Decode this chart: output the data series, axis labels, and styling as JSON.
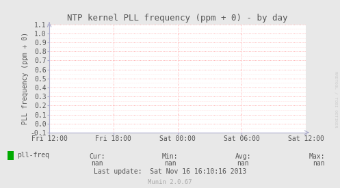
{
  "title": "NTP kernel PLL frequency (ppm + 0) - by day",
  "ylabel": "PLL frequency (ppm + 0)",
  "bg_color": "#e8e8e8",
  "plot_bg_color": "#ffffff",
  "grid_major_color": "#ff9999",
  "grid_minor_color": "#ffcccc",
  "axis_color": "#aaaacc",
  "text_color": "#555555",
  "ylim": [
    -0.1,
    1.1
  ],
  "yticks": [
    -0.1,
    0.0,
    0.1,
    0.2,
    0.3,
    0.4,
    0.5,
    0.6,
    0.7,
    0.8,
    0.9,
    1.0,
    1.1
  ],
  "xtick_labels": [
    "Fri 12:00",
    "Fri 18:00",
    "Sat 00:00",
    "Sat 06:00",
    "Sat 12:00"
  ],
  "xtick_positions": [
    0.0,
    0.25,
    0.5,
    0.75,
    1.0
  ],
  "legend_label": "pll-freq",
  "legend_color": "#00aa00",
  "cur_val": "nan",
  "min_val": "nan",
  "avg_val": "nan",
  "max_val": "nan",
  "last_update": "Last update:  Sat Nov 16 16:10:16 2013",
  "munin_version": "Munin 2.0.67",
  "watermark": "RRDTOOL / TOBI OETIKER",
  "title_fontsize": 9,
  "label_fontsize": 7,
  "tick_fontsize": 7,
  "small_fontsize": 7,
  "watermark_color": "#cccccc"
}
